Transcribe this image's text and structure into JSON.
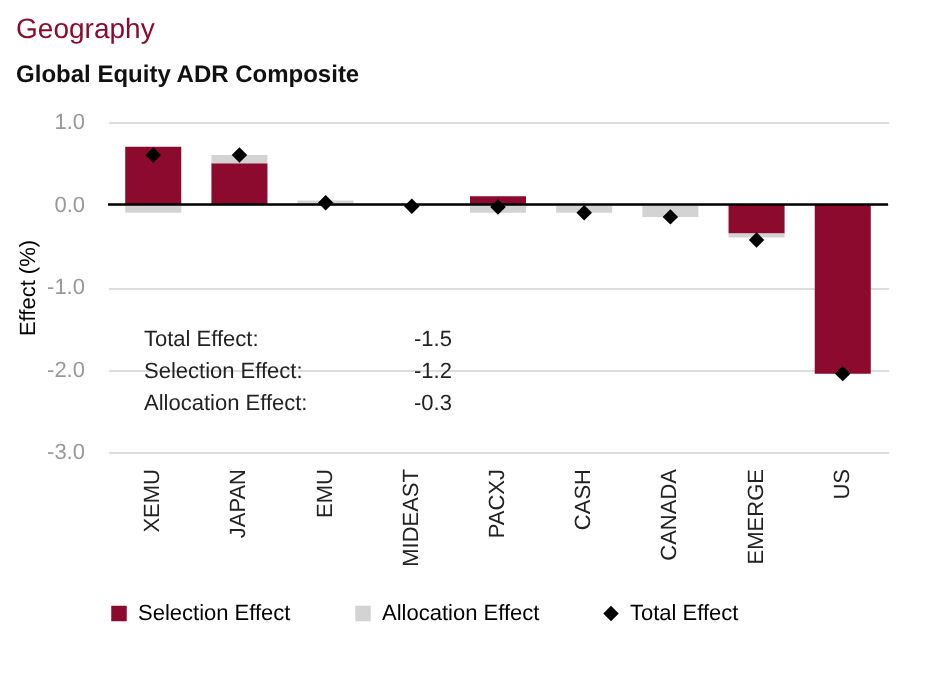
{
  "chart_data": {
    "type": "bar",
    "title": "Geography",
    "subtitle": "Global Equity ADR Composite",
    "ylabel": "Effect (%)",
    "categories": [
      "XEMU",
      "JAPAN",
      "EMU",
      "MIDEAST",
      "PACXJ",
      "CASH",
      "CANADA",
      "EMERGE",
      "US"
    ],
    "stacked": true,
    "series": [
      {
        "name": "Selection Effect",
        "color": "#8b0a2e",
        "values": [
          0.7,
          0.5,
          null,
          0.0,
          0.1,
          0.0,
          0.0,
          -0.35,
          -2.05
        ]
      },
      {
        "name": "Allocation Effect",
        "color": "#d3d3d3",
        "values": [
          -0.1,
          0.1,
          0.05,
          0.0,
          -0.1,
          -0.1,
          -0.15,
          -0.05,
          0.0
        ]
      },
      {
        "name": "Total Effect",
        "type": "scatter",
        "color": "#000000",
        "marker": "diamond",
        "values": [
          0.6,
          0.6,
          0.02,
          -0.02,
          -0.03,
          -0.1,
          -0.15,
          -0.43,
          -2.05
        ]
      }
    ],
    "ylim": [
      -3.0,
      1.0
    ],
    "yticks": [
      {
        "value": -3,
        "label": "-3.0"
      },
      {
        "value": -2,
        "label": "-2.0"
      },
      {
        "value": -1,
        "label": "-1.0"
      },
      {
        "value": 0,
        "label": "0.0"
      },
      {
        "value": 1,
        "label": "1.0"
      }
    ],
    "grid": "y",
    "legend": "bottom",
    "annotations": [
      "Total Effect:",
      "-1.5",
      "Selection Effect:",
      "-1.2",
      "Allocation Effect:",
      "-0.3"
    ]
  }
}
